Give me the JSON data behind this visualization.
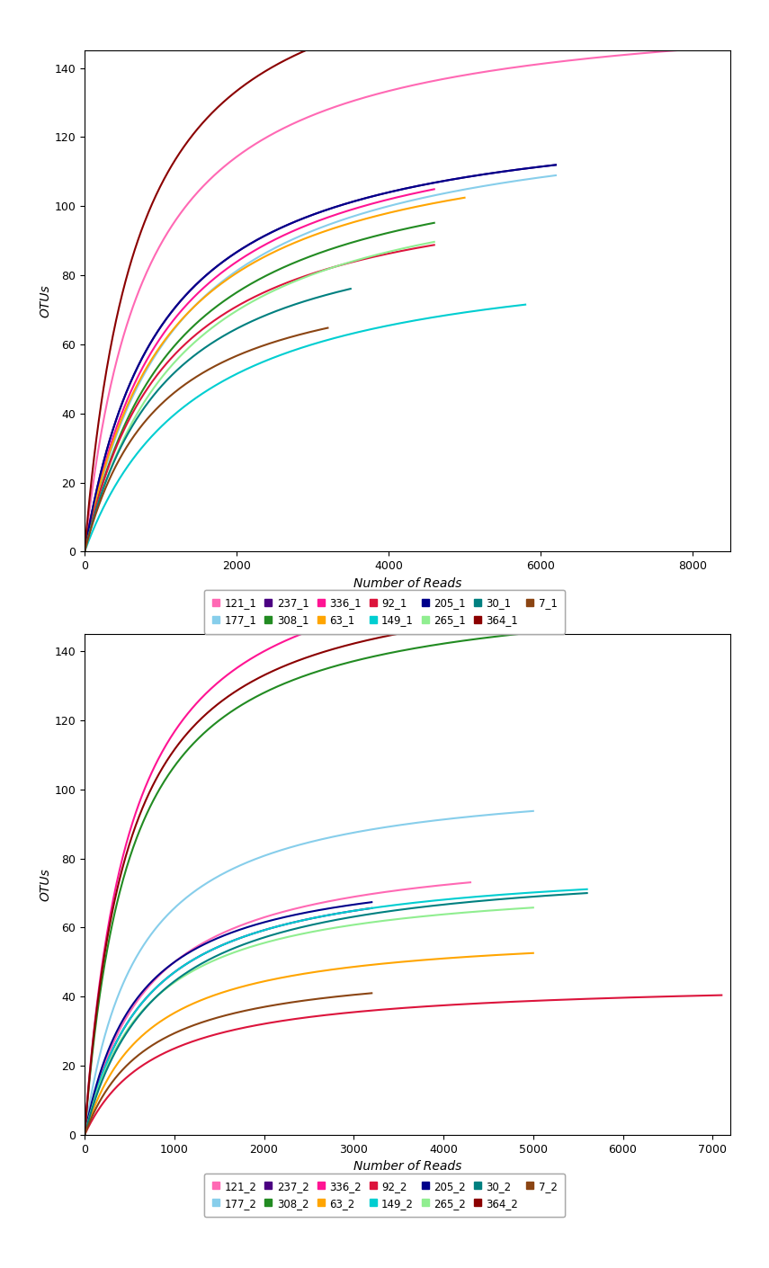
{
  "unit1": {
    "series": [
      {
        "label": "121_1",
        "color": "#FF69B4",
        "x_max": 8300,
        "S": 160,
        "k": 800
      },
      {
        "label": "177_1",
        "color": "#87CEEB",
        "x_max": 6200,
        "S": 130,
        "k": 1200
      },
      {
        "label": "237_1",
        "color": "#4B0082",
        "x_max": 6200,
        "S": 130,
        "k": 1000
      },
      {
        "label": "308_1",
        "color": "#228B22",
        "x_max": 4600,
        "S": 120,
        "k": 1200
      },
      {
        "label": "336_1",
        "color": "#FF1493",
        "x_max": 4600,
        "S": 130,
        "k": 1100
      },
      {
        "label": "63_1",
        "color": "#FFA500",
        "x_max": 5000,
        "S": 125,
        "k": 1100
      },
      {
        "label": "92_1",
        "color": "#DC143C",
        "x_max": 4600,
        "S": 110,
        "k": 1100
      },
      {
        "label": "149_1",
        "color": "#00CED1",
        "x_max": 5800,
        "S": 90,
        "k": 1500
      },
      {
        "label": "205_1",
        "color": "#00008B",
        "x_max": 6200,
        "S": 130,
        "k": 1000
      },
      {
        "label": "265_1",
        "color": "#90EE90",
        "x_max": 4600,
        "S": 115,
        "k": 1300
      },
      {
        "label": "30_1",
        "color": "#008080",
        "x_max": 3500,
        "S": 100,
        "k": 1100
      },
      {
        "label": "364_1",
        "color": "#8B0000",
        "x_max": 6200,
        "S": 180,
        "k": 700
      },
      {
        "label": "7_1",
        "color": "#8B4513",
        "x_max": 3200,
        "S": 85,
        "k": 1000
      }
    ],
    "xlim": [
      0,
      8500
    ],
    "ylim": [
      0,
      145
    ],
    "xticks": [
      0,
      2000,
      4000,
      6000,
      8000
    ],
    "yticks": [
      0,
      20,
      40,
      60,
      80,
      100,
      120,
      140
    ]
  },
  "unit2": {
    "series": [
      {
        "label": "121_2",
        "color": "#FF69B4",
        "x_max": 4300,
        "S": 85,
        "k": 700
      },
      {
        "label": "177_2",
        "color": "#87CEEB",
        "x_max": 5000,
        "S": 105,
        "k": 600
      },
      {
        "label": "237_2",
        "color": "#4B0082",
        "x_max": 3200,
        "S": 80,
        "k": 700
      },
      {
        "label": "308_2",
        "color": "#228B22",
        "x_max": 5600,
        "S": 160,
        "k": 500
      },
      {
        "label": "336_2",
        "color": "#FF1493",
        "x_max": 7100,
        "S": 175,
        "k": 500
      },
      {
        "label": "63_2",
        "color": "#FFA500",
        "x_max": 5000,
        "S": 60,
        "k": 700
      },
      {
        "label": "92_2",
        "color": "#DC143C",
        "x_max": 7100,
        "S": 45,
        "k": 800
      },
      {
        "label": "149_2",
        "color": "#00CED1",
        "x_max": 5600,
        "S": 80,
        "k": 700
      },
      {
        "label": "205_2",
        "color": "#00008B",
        "x_max": 3200,
        "S": 80,
        "k": 600
      },
      {
        "label": "265_2",
        "color": "#90EE90",
        "x_max": 5000,
        "S": 75,
        "k": 700
      },
      {
        "label": "30_2",
        "color": "#008080",
        "x_max": 5600,
        "S": 80,
        "k": 800
      },
      {
        "label": "364_2",
        "color": "#8B0000",
        "x_max": 5600,
        "S": 165,
        "k": 480
      },
      {
        "label": "7_2",
        "color": "#8B4513",
        "x_max": 3200,
        "S": 50,
        "k": 700
      }
    ],
    "xlim": [
      0,
      7200
    ],
    "ylim": [
      0,
      145
    ],
    "xticks": [
      0,
      1000,
      2000,
      3000,
      4000,
      5000,
      6000,
      7000
    ],
    "yticks": [
      0,
      20,
      40,
      60,
      80,
      100,
      120,
      140
    ]
  },
  "legend_order_row1": [
    "121",
    "177",
    "237",
    "308",
    "336",
    "63",
    "92"
  ],
  "legend_order_row2": [
    "149",
    "205",
    "265",
    "30",
    "364",
    "7"
  ],
  "colors": {
    "121": "#FF69B4",
    "177": "#87CEEB",
    "237": "#4B0082",
    "308": "#228B22",
    "336": "#FF1493",
    "63": "#FFA500",
    "92": "#DC143C",
    "149": "#00CED1",
    "205": "#00008B",
    "265": "#90EE90",
    "30": "#008080",
    "364": "#8B0000",
    "7": "#8B4513"
  },
  "xlabel": "Number of Reads",
  "ylabel": "OTUs",
  "background_color": "#FFFFFF",
  "plot_bg_color": "#FFFFFF"
}
